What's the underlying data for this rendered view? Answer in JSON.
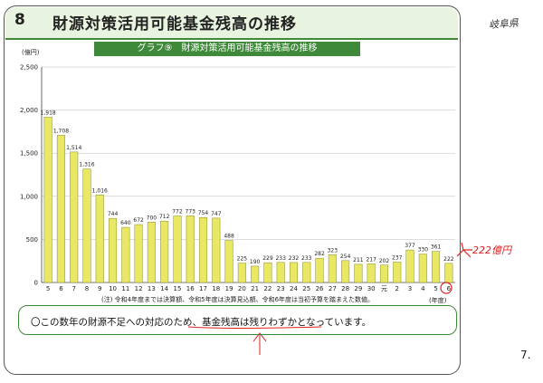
{
  "header": {
    "section_number": "8",
    "title": "財源対策活用可能基金残高の推移"
  },
  "graph_title": "グラフ⑨　財源対策活用可能基金残高の推移",
  "footnote": "(注) 令和4年度までは決算額、令和5年度は決算見込額、令和6年度は当初予算を踏まえた数値。",
  "note": {
    "text": "〇この数年の財源不足への対応のため、基金残高は残りわずかとなっています。"
  },
  "stamp_text": "岐阜県",
  "page_number": "7.",
  "annotation_text": "222億円",
  "colors": {
    "accent_green": "#3f8a3a",
    "bar_fill": "#e8e865",
    "bar_stroke": "#8a8a2a",
    "annotation_red": "#d22222"
  },
  "chart_data": {
    "type": "bar",
    "ylabel": "(億円)",
    "xlabel": "(年度)",
    "ylim": [
      0,
      2500
    ],
    "yticks": [
      "0",
      "500",
      "1,000",
      "1,500",
      "2,000",
      "2,500"
    ],
    "ytick_values": [
      0,
      500,
      1000,
      1500,
      2000,
      2500
    ],
    "grid": true,
    "categories": [
      "5",
      "6",
      "7",
      "8",
      "9",
      "10",
      "11",
      "12",
      "13",
      "14",
      "15",
      "16",
      "17",
      "18",
      "19",
      "20",
      "21",
      "22",
      "23",
      "24",
      "25",
      "26",
      "27",
      "28",
      "29",
      "30",
      "元",
      "2",
      "3",
      "4",
      "5",
      "6"
    ],
    "values": [
      1918,
      1708,
      1514,
      1316,
      1016,
      744,
      640,
      672,
      700,
      712,
      772,
      773,
      754,
      747,
      488,
      225,
      190,
      229,
      233,
      232,
      233,
      282,
      323,
      254,
      211,
      217,
      202,
      237,
      377,
      330,
      361,
      222
    ],
    "value_labels": [
      "1,918",
      "1,708",
      "1,514",
      "1,316",
      "1,016",
      "744",
      "640",
      "672",
      "700",
      "712",
      "772",
      "773",
      "754",
      "747",
      "488",
      "225",
      "190",
      "229",
      "233",
      "232",
      "233",
      "282",
      "323",
      "254",
      "211",
      "217",
      "202",
      "237",
      "377",
      "330",
      "361",
      "222"
    ]
  }
}
